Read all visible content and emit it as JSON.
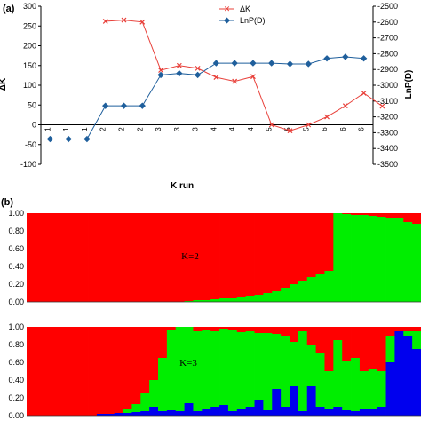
{
  "panel_a_label": "(a)",
  "panel_b_label": "(b)",
  "chart_data": [
    {
      "type": "line",
      "x_categories": [
        "1",
        "1",
        "1",
        "2",
        "2",
        "2",
        "3",
        "3",
        "3",
        "4",
        "4",
        "4",
        "5",
        "5",
        "5",
        "6",
        "6",
        "6"
      ],
      "xlabel": "K run",
      "ylabel_left": "ΔK",
      "ylabel_right": "LnP(D)",
      "ylim_left": [
        -100,
        300
      ],
      "yticks_left": [
        -100,
        -50,
        0,
        50,
        100,
        150,
        200,
        250,
        300
      ],
      "ylim_right": [
        -3500,
        -2500
      ],
      "yticks_right": [
        -2500,
        -2600,
        -2700,
        -2800,
        -2900,
        -3000,
        -3100,
        -3200,
        -3300,
        -3400,
        -3500
      ],
      "legend_position": "top-right",
      "series": [
        {
          "name": "ΔK",
          "axis": "left",
          "color": "#e8403a",
          "marker": "x",
          "start_index": 3,
          "values": [
            262,
            265,
            260,
            138,
            150,
            143,
            120,
            110,
            122,
            0,
            -15,
            0,
            20,
            48,
            80,
            47
          ]
        },
        {
          "name": "LnP(D)",
          "axis": "right",
          "color": "#1f5f9c",
          "marker": "diamond",
          "start_index": 0,
          "values": [
            -3340,
            -3340,
            -3340,
            -3130,
            -3130,
            -3130,
            -2935,
            -2925,
            -2935,
            -2860,
            -2860,
            -2860,
            -2860,
            -2865,
            -2865,
            -2830,
            -2820,
            -2830
          ]
        }
      ]
    },
    {
      "type": "bar",
      "stacked": true,
      "title": "",
      "annotation": "K=2",
      "yticks": [
        "0.00",
        "0.20",
        "0.40",
        "0.60",
        "0.80",
        "1.00"
      ],
      "ylim": [
        0,
        1
      ],
      "colors": [
        "#ff0000",
        "#00ee00"
      ],
      "individuals": 45,
      "green_fraction": [
        0,
        0,
        0,
        0,
        0,
        0,
        0,
        0,
        0,
        0,
        0,
        0,
        0,
        0,
        0,
        0,
        0,
        0,
        0.01,
        0.02,
        0.02,
        0.03,
        0.04,
        0.05,
        0.06,
        0.07,
        0.08,
        0.1,
        0.12,
        0.16,
        0.2,
        0.24,
        0.28,
        0.32,
        0.35,
        1.0,
        0.99,
        0.98,
        0.98,
        0.97,
        0.96,
        0.95,
        0.94,
        0.9,
        0.88
      ]
    },
    {
      "type": "bar",
      "stacked": true,
      "title": "",
      "annotation": "K=3",
      "yticks": [
        "0.00",
        "0.20",
        "0.40",
        "0.60",
        "0.80",
        "1.00"
      ],
      "ylim": [
        0,
        1
      ],
      "colors": [
        "#0000ee",
        "#00ee00",
        "#ff0000"
      ],
      "individuals": 45,
      "blue_fraction": [
        0,
        0,
        0,
        0,
        0,
        0,
        0,
        0,
        0.02,
        0.02,
        0.03,
        0.03,
        0.04,
        0.05,
        0.1,
        0.05,
        0.06,
        0.05,
        0.14,
        0.05,
        0.08,
        0.1,
        0.12,
        0.05,
        0.08,
        0.1,
        0.18,
        0.06,
        0.3,
        0.1,
        0.33,
        0.05,
        0.33,
        0.1,
        0.08,
        0.1,
        0.06,
        0.05,
        0.08,
        0.07,
        0.1,
        0.6,
        0.95,
        0.9,
        0.75
      ],
      "green_fraction": [
        0.0,
        0.0,
        0.0,
        0.0,
        0.0,
        0.0,
        0.0,
        0.0,
        0.0,
        0.0,
        0.0,
        0.04,
        0.09,
        0.2,
        0.3,
        0.6,
        0.9,
        0.95,
        0.86,
        0.9,
        0.88,
        0.85,
        0.86,
        0.92,
        0.86,
        0.85,
        0.75,
        0.87,
        0.62,
        0.8,
        0.5,
        0.9,
        0.47,
        0.6,
        0.42,
        0.75,
        0.55,
        0.6,
        0.42,
        0.45,
        0.4,
        0.3,
        0.0,
        0.05,
        0.2
      ]
    }
  ]
}
